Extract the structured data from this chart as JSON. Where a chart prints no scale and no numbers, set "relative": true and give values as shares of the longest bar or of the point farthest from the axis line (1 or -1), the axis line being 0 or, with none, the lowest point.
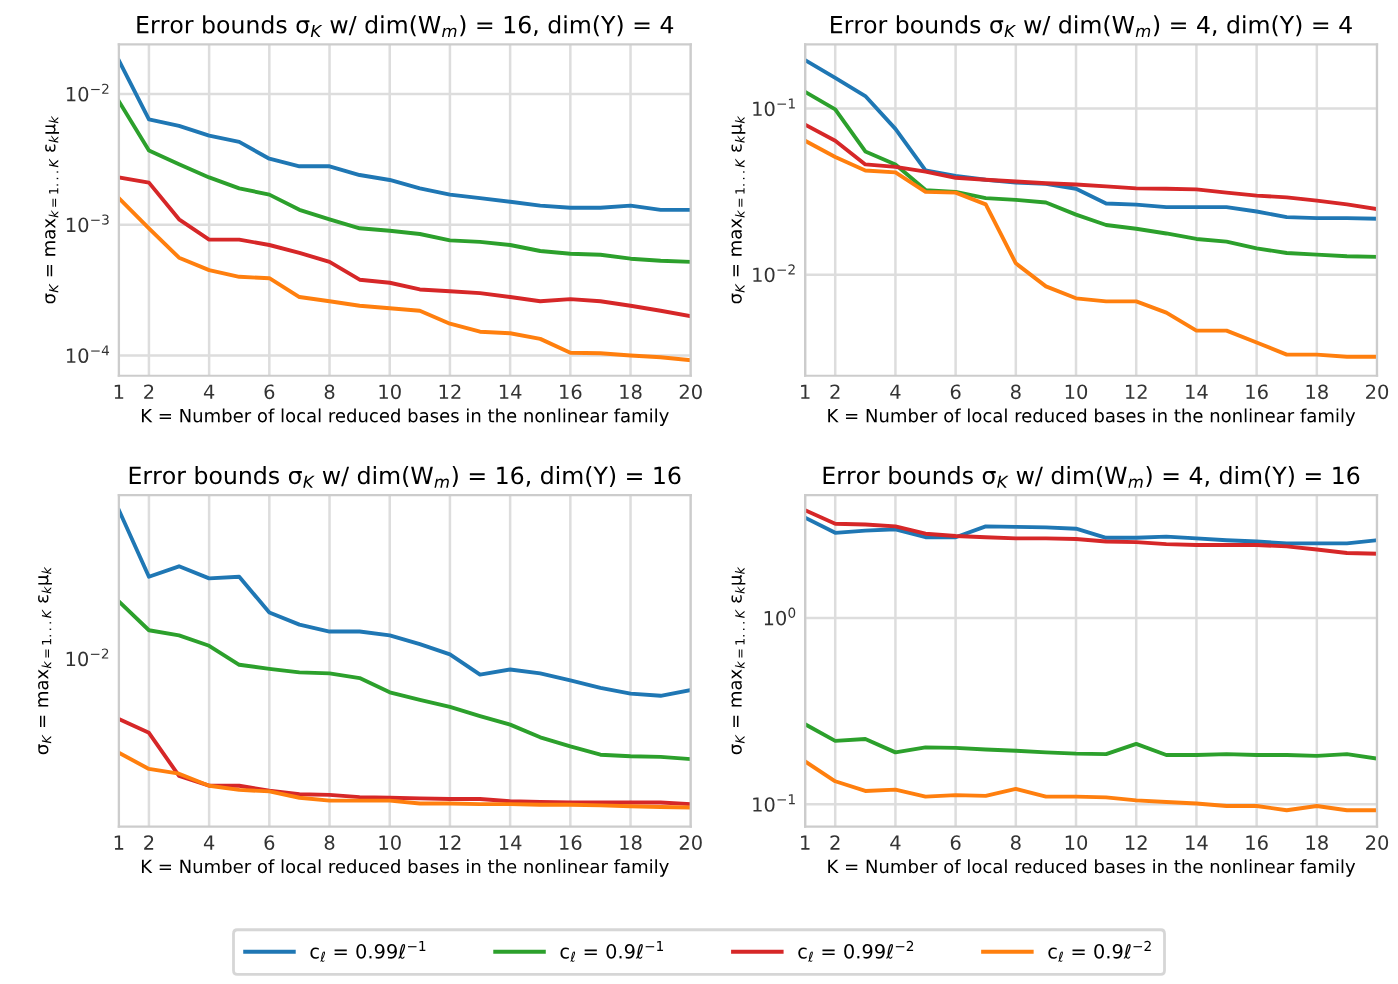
{
  "chart_data": [
    {
      "type": "line",
      "title": "Error bounds σ$_{K}$ w/ dim(W$_{m}$) = 16, dim(Y) = 4",
      "xlabel": "K = Number of local reduced bases in the nonlinear family",
      "ylabel": "σ$_{K}$ = max$_{k=1...K}$ ε$_{k}$μ$_{k}$",
      "log": true,
      "grid": true,
      "legend": "bottom",
      "x": [
        1,
        2,
        3,
        4,
        5,
        6,
        7,
        8,
        9,
        10,
        11,
        12,
        13,
        14,
        15,
        16,
        17,
        18,
        19,
        20
      ],
      "xlim": [
        1,
        20
      ],
      "xticks": [
        1,
        2,
        4,
        6,
        8,
        10,
        12,
        14,
        16,
        18,
        20
      ],
      "ylim": [
        7e-05,
        0.024
      ],
      "yticks": [
        {
          "value": 0.0001,
          "label": "10$^{−4}$"
        },
        {
          "value": 0.001,
          "label": "10$^{−3}$"
        },
        {
          "value": 0.01,
          "label": "10$^{−2}$"
        }
      ],
      "series": [
        {
          "name": "c$_{ℓ}$ = 0.99ℓ$^{−1}$",
          "color": "#1f77b4",
          "values": [
            0.0181,
            0.0064,
            0.0057,
            0.0048,
            0.0043,
            0.0032,
            0.0028,
            0.0028,
            0.0024,
            0.0022,
            0.0019,
            0.0017,
            0.0016,
            0.0015,
            0.0014,
            0.00135,
            0.00135,
            0.0014,
            0.0013,
            0.0013
          ]
        },
        {
          "name": "c$_{ℓ}$ = 0.9ℓ$^{−1}$",
          "color": "#2ca02c",
          "values": [
            0.0088,
            0.0037,
            0.0029,
            0.0023,
            0.0019,
            0.0017,
            0.0013,
            0.0011,
            0.00094,
            0.0009,
            0.00085,
            0.00076,
            0.00074,
            0.0007,
            0.00063,
            0.0006,
            0.00059,
            0.00055,
            0.00053,
            0.00052
          ]
        },
        {
          "name": "c$_{ℓ}$ = 0.99ℓ$^{−2}$",
          "color": "#d62728",
          "values": [
            0.0023,
            0.0021,
            0.0011,
            0.00077,
            0.00077,
            0.0007,
            0.00061,
            0.00052,
            0.00038,
            0.00036,
            0.00032,
            0.00031,
            0.0003,
            0.00028,
            0.00026,
            0.00027,
            0.00026,
            0.00024,
            0.00022,
            0.0002
          ]
        },
        {
          "name": "c$_{ℓ}$ = 0.9ℓ$^{−2}$",
          "color": "#ff7f0e",
          "values": [
            0.0016,
            0.00094,
            0.00056,
            0.00045,
            0.0004,
            0.00039,
            0.00028,
            0.00026,
            0.00024,
            0.00023,
            0.00022,
            0.000175,
            0.000152,
            0.000148,
            0.000134,
            0.000105,
            0.000104,
            0.0001,
            9.7e-05,
            9.2e-05
          ]
        }
      ]
    },
    {
      "type": "line",
      "title": "Error bounds σ$_{K}$ w/ dim(W$_{m}$) = 4, dim(Y) = 4",
      "xlabel": "K = Number of local reduced bases in the nonlinear family",
      "ylabel": "σ$_{K}$ = max$_{k=1...K}$ ε$_{k}$μ$_{k}$",
      "log": true,
      "grid": true,
      "x": [
        1,
        2,
        3,
        4,
        5,
        6,
        7,
        8,
        9,
        10,
        11,
        12,
        13,
        14,
        15,
        16,
        17,
        18,
        19,
        20
      ],
      "xlim": [
        1,
        20
      ],
      "xticks": [
        1,
        2,
        4,
        6,
        8,
        10,
        12,
        14,
        16,
        18,
        20
      ],
      "ylim": [
        0.00246,
        0.244
      ],
      "yticks": [
        {
          "value": 0.01,
          "label": "10$^{−2}$"
        },
        {
          "value": 0.1,
          "label": "10$^{−1}$"
        }
      ],
      "series": [
        {
          "color": "#1f77b4",
          "values": [
            0.196,
            0.153,
            0.119,
            0.0755,
            0.0424,
            0.0393,
            0.0373,
            0.0358,
            0.0352,
            0.0329,
            0.0268,
            0.0264,
            0.0255,
            0.0255,
            0.0255,
            0.024,
            0.0222,
            0.0219,
            0.0219,
            0.0217
          ]
        },
        {
          "color": "#2ca02c",
          "values": [
            0.126,
            0.099,
            0.0552,
            0.0461,
            0.0323,
            0.0315,
            0.0289,
            0.0282,
            0.0272,
            0.023,
            0.0199,
            0.0189,
            0.0177,
            0.0164,
            0.0158,
            0.0144,
            0.0135,
            0.0132,
            0.0129,
            0.0128
          ]
        },
        {
          "color": "#d62728",
          "values": [
            0.08,
            0.064,
            0.0461,
            0.0446,
            0.0417,
            0.0383,
            0.0373,
            0.0364,
            0.0355,
            0.0349,
            0.034,
            0.0331,
            0.0329,
            0.0326,
            0.0312,
            0.0299,
            0.0292,
            0.0279,
            0.0265,
            0.0248
          ]
        },
        {
          "color": "#ff7f0e",
          "values": [
            0.064,
            0.0511,
            0.0424,
            0.0413,
            0.0315,
            0.0312,
            0.0265,
            0.0117,
            0.0085,
            0.0072,
            0.0069,
            0.0069,
            0.0059,
            0.0046,
            0.0046,
            0.0039,
            0.0033,
            0.0033,
            0.0032,
            0.0032
          ]
        }
      ]
    },
    {
      "type": "line",
      "title": "Error bounds σ$_{K}$ w/ dim(W$_{m}$) = 16, dim(Y) = 16",
      "xlabel": "K = Number of local reduced bases in the nonlinear family",
      "ylabel": "σ$_{K}$ = max$_{k=1...K}$ ε$_{k}$μ$_{k}$",
      "grid": true,
      "x": [
        1,
        2,
        3,
        4,
        5,
        6,
        7,
        8,
        9,
        10,
        11,
        12,
        13,
        14,
        15,
        16,
        17,
        18,
        19,
        20
      ],
      "xlim": [
        1,
        20
      ],
      "xticks": [
        1,
        2,
        4,
        6,
        8,
        10,
        12,
        14,
        16,
        18,
        20
      ],
      "relative": true,
      "annotations": [
        "10$^{−2}$"
      ],
      "series": [
        {
          "color": "#1f77b4",
          "values": [
            1,
            0.789,
            0.822,
            0.784,
            0.789,
            0.676,
            0.638,
            0.616,
            0.616,
            0.604,
            0.576,
            0.544,
            0.48,
            0.496,
            0.484,
            0.462,
            0.438,
            0.42,
            0.413,
            0.431
          ]
        },
        {
          "color": "#2ca02c",
          "values": [
            0.711,
            0.62,
            0.604,
            0.571,
            0.511,
            0.498,
            0.487,
            0.484,
            0.469,
            0.424,
            0.4,
            0.378,
            0.349,
            0.322,
            0.282,
            0.253,
            0.227,
            0.222,
            0.22,
            0.213
          ]
        },
        {
          "color": "#d62728",
          "values": [
            0.34,
            0.296,
            0.16,
            0.129,
            0.129,
            0.113,
            0.102,
            0.1,
            0.093,
            0.091,
            0.089,
            0.087,
            0.087,
            0.08,
            0.078,
            0.076,
            0.076,
            0.076,
            0.076,
            0.071
          ]
        },
        {
          "color": "#ff7f0e",
          "values": [
            0.233,
            0.182,
            0.167,
            0.129,
            0.116,
            0.111,
            0.091,
            0.082,
            0.082,
            0.082,
            0.073,
            0.073,
            0.071,
            0.071,
            0.069,
            0.069,
            0.067,
            0.064,
            0.062,
            0.06
          ]
        }
      ]
    },
    {
      "type": "line",
      "title": "Error bounds σ$_{K}$ w/ dim(W$_{m}$) = 4, dim(Y) = 16",
      "xlabel": "K = Number of local reduced bases in the nonlinear family",
      "ylabel": "σ$_{K}$ = max$_{k=1...K}$ ε$_{k}$μ$_{k}$",
      "log": true,
      "grid": true,
      "x": [
        1,
        2,
        3,
        4,
        5,
        6,
        7,
        8,
        9,
        10,
        11,
        12,
        13,
        14,
        15,
        16,
        17,
        18,
        19,
        20
      ],
      "xlim": [
        1,
        20
      ],
      "xticks": [
        1,
        2,
        4,
        6,
        8,
        10,
        12,
        14,
        16,
        18,
        20
      ],
      "ylim": [
        0.076,
        4.56
      ],
      "yticks": [
        {
          "value": 0.1,
          "label": "10$^{−1}$"
        },
        {
          "value": 1,
          "label": "10$^{0}$"
        }
      ],
      "series": [
        {
          "color": "#1f77b4",
          "values": [
            3.45,
            2.86,
            2.94,
            2.99,
            2.71,
            2.71,
            3.1,
            3.08,
            3.06,
            3.01,
            2.69,
            2.69,
            2.73,
            2.67,
            2.61,
            2.57,
            2.51,
            2.51,
            2.51,
            2.61
          ]
        },
        {
          "color": "#2ca02c",
          "values": [
            0.269,
            0.219,
            0.224,
            0.19,
            0.202,
            0.201,
            0.197,
            0.194,
            0.19,
            0.187,
            0.186,
            0.211,
            0.184,
            0.184,
            0.186,
            0.184,
            0.184,
            0.182,
            0.186,
            0.176
          ]
        },
        {
          "color": "#d62728",
          "values": [
            3.78,
            3.2,
            3.17,
            3.1,
            2.83,
            2.75,
            2.71,
            2.67,
            2.67,
            2.65,
            2.57,
            2.55,
            2.49,
            2.46,
            2.46,
            2.46,
            2.42,
            2.33,
            2.23,
            2.21
          ]
        },
        {
          "color": "#ff7f0e",
          "values": [
            0.17,
            0.133,
            0.118,
            0.12,
            0.11,
            0.112,
            0.111,
            0.121,
            0.11,
            0.11,
            0.109,
            0.105,
            0.103,
            0.101,
            0.098,
            0.098,
            0.093,
            0.098,
            0.093,
            0.093
          ]
        }
      ]
    }
  ]
}
